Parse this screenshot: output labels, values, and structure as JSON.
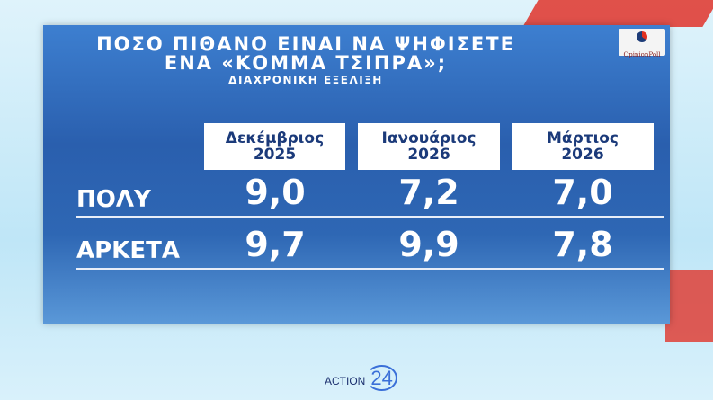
{
  "title": {
    "line1": "ΠΟΣΟ ΠΙΘΑΝΟ ΕΙΝΑΙ ΝΑ ΨΗΦΙΣΕΤΕ",
    "line2": "ΕΝΑ «ΚΟΜΜΑ ΤΣΙΠΡΑ»;",
    "subtitle": "ΔΙΑΧΡΟΝΙΚΗ ΕΞΕΛΙΞΗ"
  },
  "logo": {
    "text": "OpinionPoll"
  },
  "table": {
    "columns": [
      {
        "month": "Δεκέμβριος",
        "year": "2025"
      },
      {
        "month": "Ιανουάριος",
        "year": "2026"
      },
      {
        "month": "Μάρτιος",
        "year": "2026"
      }
    ],
    "rows": [
      {
        "label": "ΠΟΛΥ",
        "values": [
          "9,0",
          "7,2",
          "7,0"
        ]
      },
      {
        "label": "ΑΡΚΕΤΑ",
        "values": [
          "9,7",
          "9,9",
          "7,8"
        ]
      }
    ]
  },
  "channel": {
    "name": "ACTION",
    "number": "24"
  },
  "colors": {
    "panel": "#2a5fae",
    "header_text": "#1b3a7a",
    "text": "#ffffff"
  }
}
